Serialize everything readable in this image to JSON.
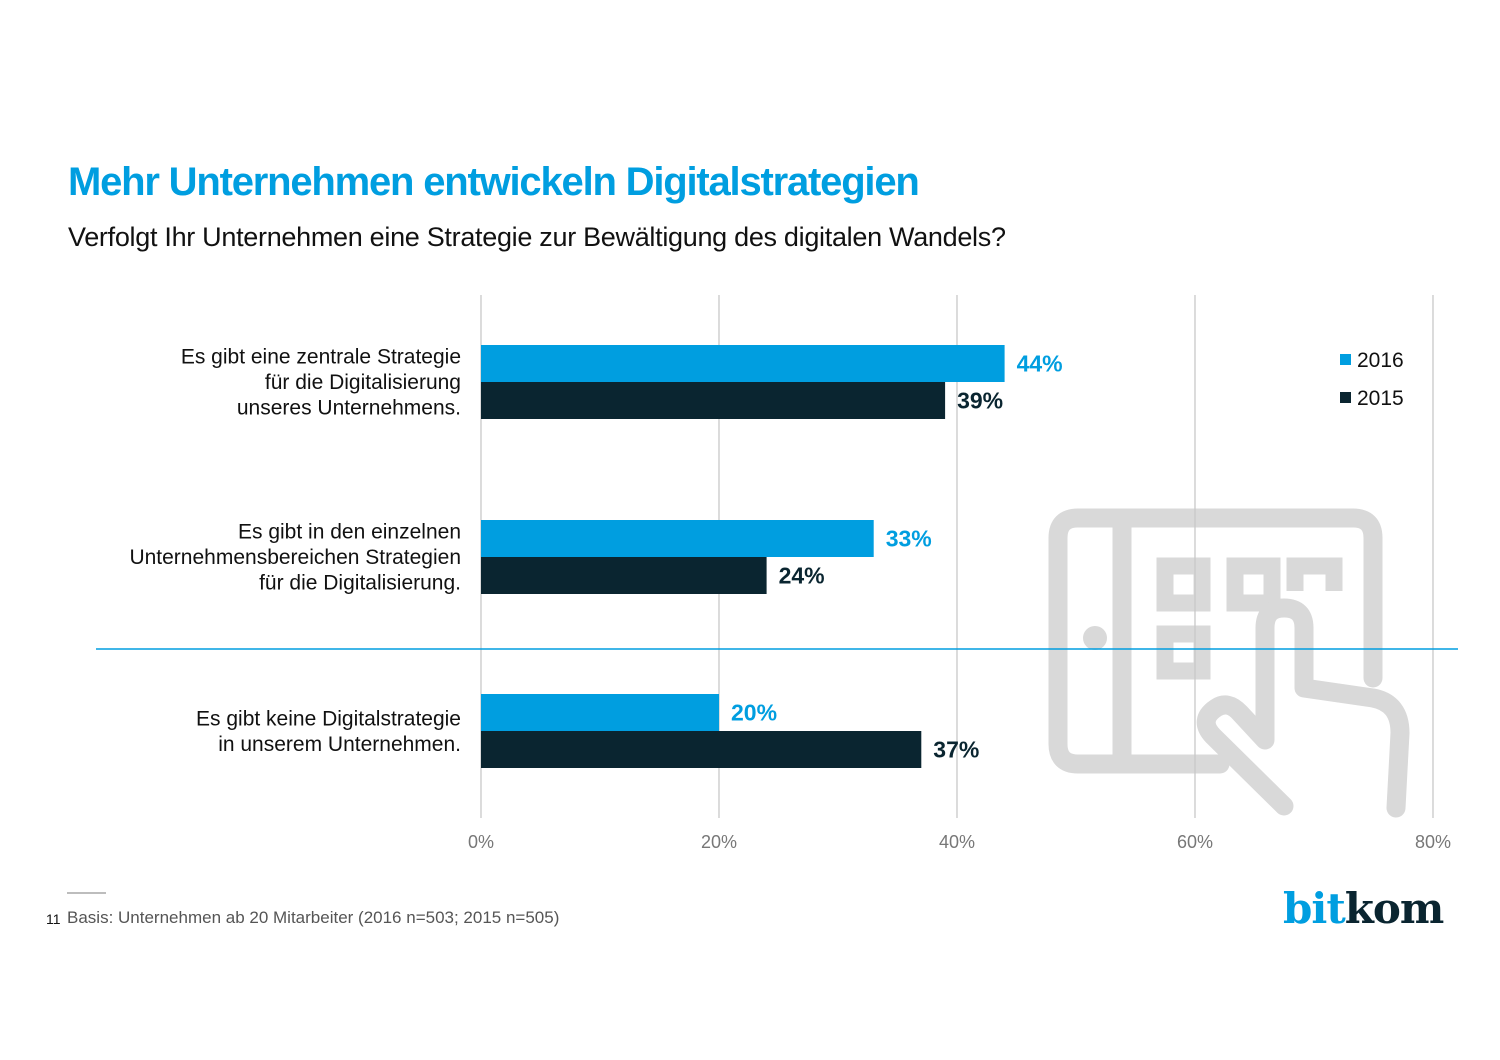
{
  "header": {
    "title": "Mehr Unternehmen entwickeln Digitalstrategien",
    "subtitle": "Verfolgt Ihr Unternehmen eine Strategie zur Bewältigung des digitalen Wandels?"
  },
  "chart_data": {
    "type": "bar",
    "orientation": "horizontal",
    "title": "Mehr Unternehmen entwickeln Digitalstrategien",
    "subtitle": "Verfolgt Ihr Unternehmen eine Strategie zur Bewältigung des digitalen Wandels?",
    "xlabel": "",
    "ylabel": "",
    "xlim": [
      0,
      80
    ],
    "x_ticks": [
      0,
      20,
      40,
      60,
      80
    ],
    "x_tick_labels": [
      "0%",
      "20%",
      "40%",
      "60%",
      "80%"
    ],
    "grid": true,
    "legend_position": "top-right",
    "categories": [
      [
        "Es gibt eine zentrale Strategie",
        "für die Digitalisierung",
        "unseres Unternehmens."
      ],
      [
        "Es gibt in den einzelnen",
        "Unternehmensbereichen Strategien",
        "für die Digitalisierung."
      ],
      [
        "Es gibt keine Digitalstrategie",
        "in unserem Unternehmen."
      ]
    ],
    "separator_after_category": 1,
    "series": [
      {
        "name": "2016",
        "color": "#009ee0",
        "values": [
          44,
          33,
          20
        ],
        "labels": [
          "44%",
          "33%",
          "20%"
        ]
      },
      {
        "name": "2015",
        "color": "#0a2530",
        "values": [
          39,
          24,
          37
        ],
        "labels": [
          "39%",
          "24%",
          "37%"
        ]
      }
    ]
  },
  "colors": {
    "accent": "#009ee0",
    "dark": "#0a2530",
    "gridline": "#c8c8c8",
    "separator": "#009ee0",
    "watermark": "#d9d9d9"
  },
  "footer": {
    "page_number": "11",
    "note": "Basis: Unternehmen ab 20 Mitarbeiter (2016 n=503; 2015 n=505)",
    "logo_part1": "bit",
    "logo_part2": "kom"
  },
  "watermark_icon": "tablet-touch-icon"
}
